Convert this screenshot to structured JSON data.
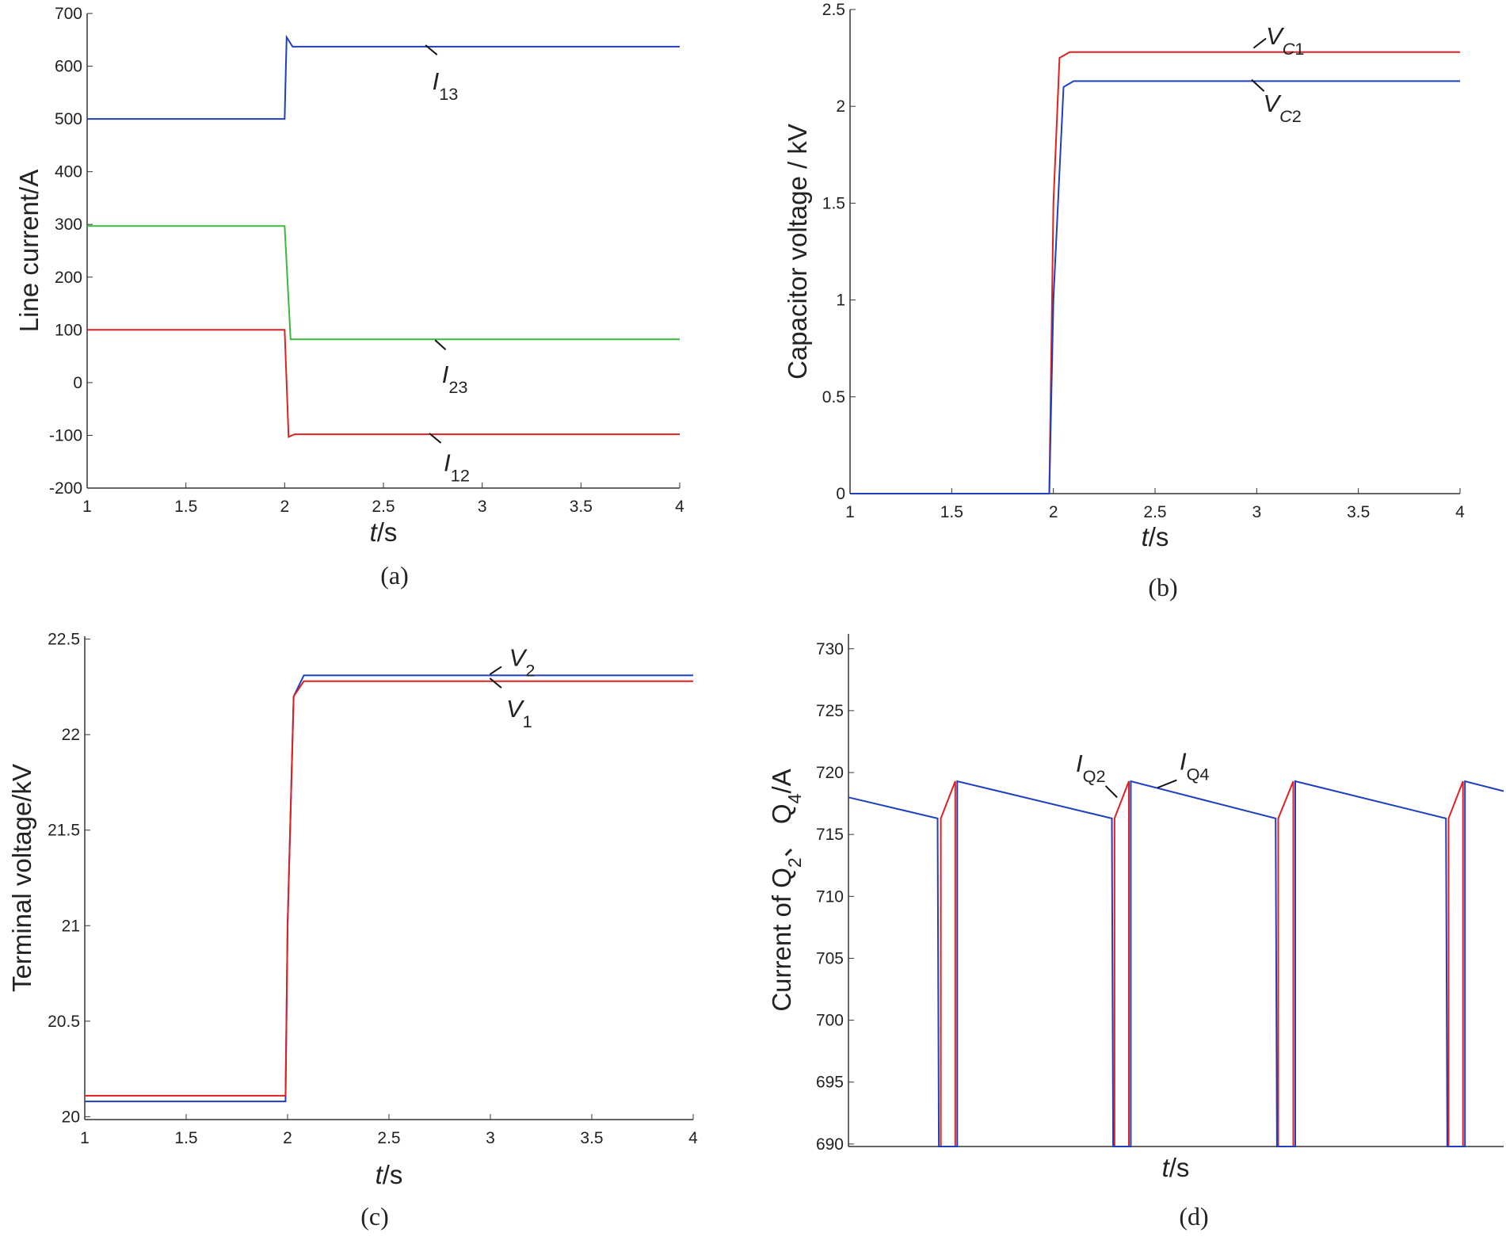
{
  "chart_data": [
    {
      "type": "line",
      "caption": "(a)",
      "xlabel": [
        {
          "text": "t",
          "italic": true
        },
        {
          "text": "/s"
        }
      ],
      "ylabel": [
        {
          "text": "Line current/A"
        }
      ],
      "xlim": [
        1,
        4
      ],
      "xticks": [
        1,
        1.5,
        2,
        2.5,
        3,
        3.5,
        4
      ],
      "ylim": [
        -200,
        700
      ],
      "yticks": [
        -200,
        -100,
        0,
        100,
        200,
        300,
        400,
        500,
        600,
        700
      ],
      "series": [
        {
          "label": [
            {
              "text": "I",
              "italic": true
            },
            {
              "text": "13",
              "sub": true
            }
          ],
          "color": "#1f3fbf",
          "x": [
            1,
            2,
            2.01,
            2.04,
            4
          ],
          "values": [
            500,
            500,
            655,
            637,
            637
          ]
        },
        {
          "label": [
            {
              "text": "I",
              "italic": true
            },
            {
              "text": "23",
              "sub": true
            }
          ],
          "color": "#3cb83c",
          "x": [
            1,
            2,
            2.03,
            4
          ],
          "values": [
            297,
            297,
            82,
            82
          ]
        },
        {
          "label": [
            {
              "text": "I",
              "italic": true
            },
            {
              "text": "12",
              "sub": true
            }
          ],
          "color": "#e02020",
          "x": [
            1,
            2,
            2.02,
            2.05,
            4
          ],
          "values": [
            100,
            100,
            -103,
            -98,
            -98
          ]
        }
      ]
    },
    {
      "type": "line",
      "caption": "(b)",
      "xlabel": [
        {
          "text": "t",
          "italic": true
        },
        {
          "text": "/s"
        }
      ],
      "ylabel": [
        {
          "text": "Capacitor voltage / kV"
        }
      ],
      "xlim": [
        1,
        4
      ],
      "xticks": [
        1,
        1.5,
        2,
        2.5,
        3,
        3.5,
        4
      ],
      "ylim": [
        0,
        2.5
      ],
      "yticks": [
        0,
        0.5,
        1,
        1.5,
        2,
        2.5
      ],
      "series": [
        {
          "label": [
            {
              "text": "V",
              "italic": true
            },
            {
              "text": "C",
              "italic": true,
              "sub": true
            },
            {
              "text": "1",
              "sub": true
            }
          ],
          "color": "#e02020",
          "x": [
            1,
            1.98,
            2.0,
            2.03,
            2.08,
            4
          ],
          "values": [
            0,
            0,
            1.5,
            2.25,
            2.28,
            2.28
          ]
        },
        {
          "label": [
            {
              "text": "V",
              "italic": true
            },
            {
              "text": "C",
              "italic": true,
              "sub": true
            },
            {
              "text": "2",
              "sub": true
            }
          ],
          "color": "#1f3fbf",
          "x": [
            1,
            1.98,
            2.0,
            2.05,
            2.1,
            4
          ],
          "values": [
            0,
            0,
            1.0,
            2.1,
            2.13,
            2.13
          ]
        }
      ]
    },
    {
      "type": "line",
      "caption": "(c)",
      "xlabel": [
        {
          "text": "t",
          "italic": true
        },
        {
          "text": "/s"
        }
      ],
      "ylabel": [
        {
          "text": "Terminal voltage/kV"
        }
      ],
      "xlim": [
        1,
        4
      ],
      "xticks": [
        1,
        1.5,
        2,
        2.5,
        3,
        3.5,
        4
      ],
      "ylim": [
        19.985,
        22.515
      ],
      "yticks": [
        20,
        20.5,
        21,
        21.5,
        22,
        22.5
      ],
      "series": [
        {
          "label": [
            {
              "text": "V",
              "italic": true
            },
            {
              "text": "2",
              "sub": true
            }
          ],
          "color": "#1f3fbf",
          "x": [
            1,
            1.99,
            2.0,
            2.03,
            2.08,
            4
          ],
          "values": [
            20.08,
            20.08,
            21.0,
            22.2,
            22.31,
            22.31
          ]
        },
        {
          "label": [
            {
              "text": "V",
              "italic": true
            },
            {
              "text": "1",
              "sub": true
            }
          ],
          "color": "#e02020",
          "x": [
            1,
            1.99,
            2.0,
            2.03,
            2.08,
            4
          ],
          "values": [
            20.11,
            20.11,
            21.0,
            22.2,
            22.28,
            22.28
          ]
        }
      ]
    },
    {
      "type": "line",
      "caption": "(d)",
      "xlabel": [
        {
          "text": "t",
          "italic": true
        },
        {
          "text": "/s"
        }
      ],
      "ylabel": [
        {
          "text": "Current of Q"
        },
        {
          "text": "2",
          "sub": true
        },
        {
          "text": "、 Q"
        },
        {
          "text": "4",
          "sub": true
        },
        {
          "text": "/A"
        }
      ],
      "xlim": [
        0,
        100
      ],
      "ylim": [
        689.8,
        731.2
      ],
      "yticks": [
        690,
        695,
        700,
        705,
        710,
        715,
        720,
        725,
        730
      ],
      "series": [
        {
          "label": [
            {
              "text": "I",
              "italic": true
            },
            {
              "text": "Q2",
              "sub": true
            }
          ],
          "color": "#e02020",
          "x": [
            14.1,
            14.1,
            16.3,
            16.3,
            null,
            40.6,
            40.6,
            42.8,
            42.8,
            null,
            65.6,
            65.6,
            67.9,
            67.9,
            null,
            91.6,
            91.6,
            93.8,
            93.8
          ],
          "values": [
            689.8,
            716.3,
            719.3,
            689.8,
            null,
            689.8,
            716.3,
            719.3,
            689.8,
            null,
            689.8,
            716.3,
            719.3,
            689.8,
            null,
            689.8,
            716.3,
            719.3,
            689.8
          ]
        },
        {
          "label": [
            {
              "text": "I",
              "italic": true
            },
            {
              "text": "Q4",
              "sub": true
            }
          ],
          "color": "#1f3fbf",
          "x": [
            0,
            13.6,
            13.8,
            16.6,
            16.6,
            40.2,
            40.4,
            43.1,
            43.1,
            65.2,
            65.4,
            68.2,
            68.2,
            91.2,
            91.4,
            94.1,
            94.1,
            100
          ],
          "values": [
            718,
            716.3,
            689.8,
            689.8,
            719.3,
            716.3,
            689.8,
            689.8,
            719.3,
            716.3,
            689.8,
            689.8,
            719.3,
            716.3,
            689.8,
            689.8,
            719.3,
            718.5
          ]
        }
      ]
    }
  ]
}
